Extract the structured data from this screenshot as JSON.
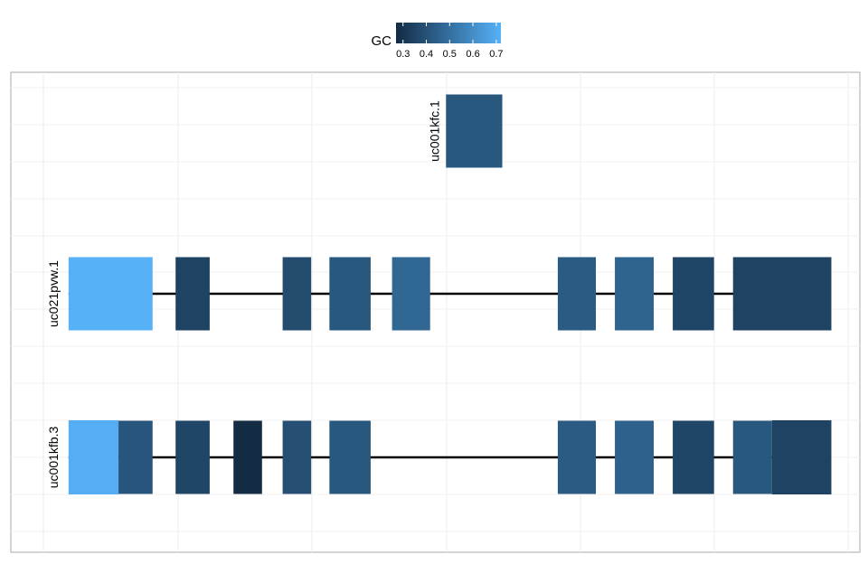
{
  "chart_data": {
    "type": "gene-track",
    "legend": {
      "title": "GC",
      "ticks": [
        0.3,
        0.4,
        0.5,
        0.6,
        0.7
      ],
      "range": [
        0.27,
        0.72
      ],
      "low_color": "#132B43",
      "high_color": "#56B1F7"
    },
    "x_domain": [
      0,
      100
    ],
    "grid": true,
    "tracks": [
      {
        "name": "uc001kfc.1",
        "line": null,
        "exons": [
          {
            "start": 50.2,
            "end": 57.3,
            "gc": 0.42,
            "tall": true
          }
        ]
      },
      {
        "name": "uc021pvw.1",
        "line": [
          2.6,
          95.5
        ],
        "exons": [
          {
            "start": 2.6,
            "end": 13.2,
            "gc": 0.72,
            "tall": true
          },
          {
            "start": 16.1,
            "end": 20.4,
            "gc": 0.35,
            "tall": true
          },
          {
            "start": 29.6,
            "end": 33.2,
            "gc": 0.38,
            "tall": true
          },
          {
            "start": 35.5,
            "end": 40.7,
            "gc": 0.42,
            "tall": true
          },
          {
            "start": 43.4,
            "end": 48.2,
            "gc": 0.47,
            "tall": true
          },
          {
            "start": 64.3,
            "end": 69.1,
            "gc": 0.43,
            "tall": true
          },
          {
            "start": 71.5,
            "end": 76.4,
            "gc": 0.46,
            "tall": true
          },
          {
            "start": 78.8,
            "end": 84.0,
            "gc": 0.36,
            "tall": true
          },
          {
            "start": 86.4,
            "end": 98.8,
            "gc": 0.35,
            "tall": true
          }
        ]
      },
      {
        "name": "uc001kfb.3",
        "line": [
          2.6,
          98.8
        ],
        "exons": [
          {
            "start": 2.6,
            "end": 8.9,
            "gc": 0.71,
            "tall": false
          },
          {
            "start": 8.9,
            "end": 13.2,
            "gc": 0.41,
            "tall": true
          },
          {
            "start": 16.1,
            "end": 20.4,
            "gc": 0.36,
            "tall": true
          },
          {
            "start": 23.4,
            "end": 27.0,
            "gc": 0.27,
            "tall": true
          },
          {
            "start": 29.6,
            "end": 33.2,
            "gc": 0.39,
            "tall": true
          },
          {
            "start": 35.5,
            "end": 40.7,
            "gc": 0.42,
            "tall": true
          },
          {
            "start": 64.3,
            "end": 69.1,
            "gc": 0.43,
            "tall": true
          },
          {
            "start": 71.5,
            "end": 76.4,
            "gc": 0.45,
            "tall": true
          },
          {
            "start": 78.8,
            "end": 84.0,
            "gc": 0.36,
            "tall": true
          },
          {
            "start": 86.4,
            "end": 91.3,
            "gc": 0.42,
            "tall": true
          },
          {
            "start": 91.3,
            "end": 98.8,
            "gc": 0.35,
            "tall": false
          }
        ]
      }
    ]
  }
}
